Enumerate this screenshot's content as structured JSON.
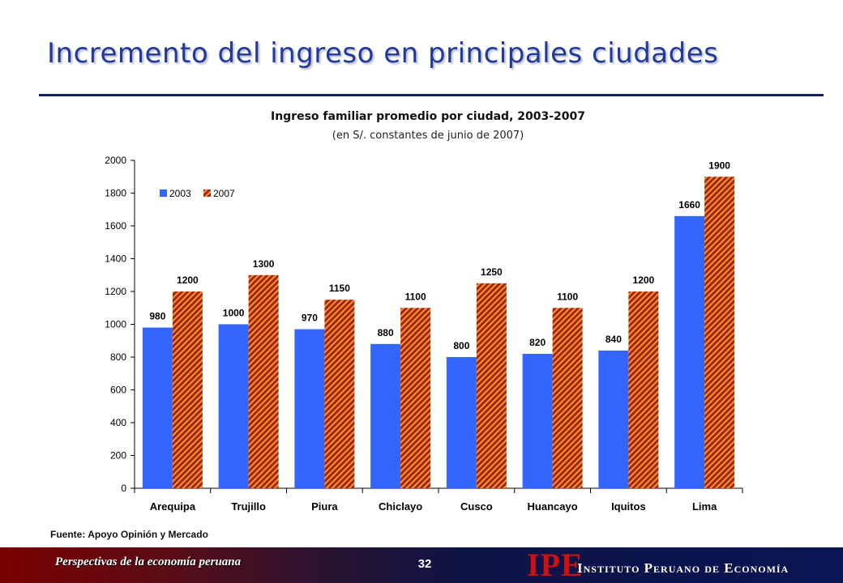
{
  "slide": {
    "title": "Incremento del ingreso en principales ciudades",
    "source": "Fuente: Apoyo Opinión y Mercado",
    "footer_left": "Perspectivas de la economía peruana",
    "page_number": "32",
    "logo_mark": "IPE",
    "logo_name": "Instituto Peruano de Economía"
  },
  "chart_data": {
    "type": "bar",
    "title": "Ingreso familiar promedio por ciudad, 2003-2007",
    "subtitle": "(en S/. constantes de junio de 2007)",
    "xlabel": "",
    "ylabel": "",
    "categories": [
      "Arequipa",
      "Trujillo",
      "Piura",
      "Chiclayo",
      "Cusco",
      "Huancayo",
      "Iquitos",
      "Lima"
    ],
    "series": [
      {
        "name": "2003",
        "values": [
          980,
          1000,
          970,
          880,
          800,
          820,
          840,
          1660
        ],
        "color": "#3366ff",
        "pattern": "solid"
      },
      {
        "name": "2007",
        "values": [
          1200,
          1300,
          1150,
          1100,
          1250,
          1100,
          1200,
          1900
        ],
        "color": "#a6231a",
        "pattern": "diagonal-hatch-orange"
      }
    ],
    "ylim": [
      0,
      2000
    ],
    "yticks": [
      0,
      200,
      400,
      600,
      800,
      1000,
      1200,
      1400,
      1600,
      1800,
      2000
    ],
    "grid": false,
    "legend_position": "top-left",
    "data_labels": true
  }
}
